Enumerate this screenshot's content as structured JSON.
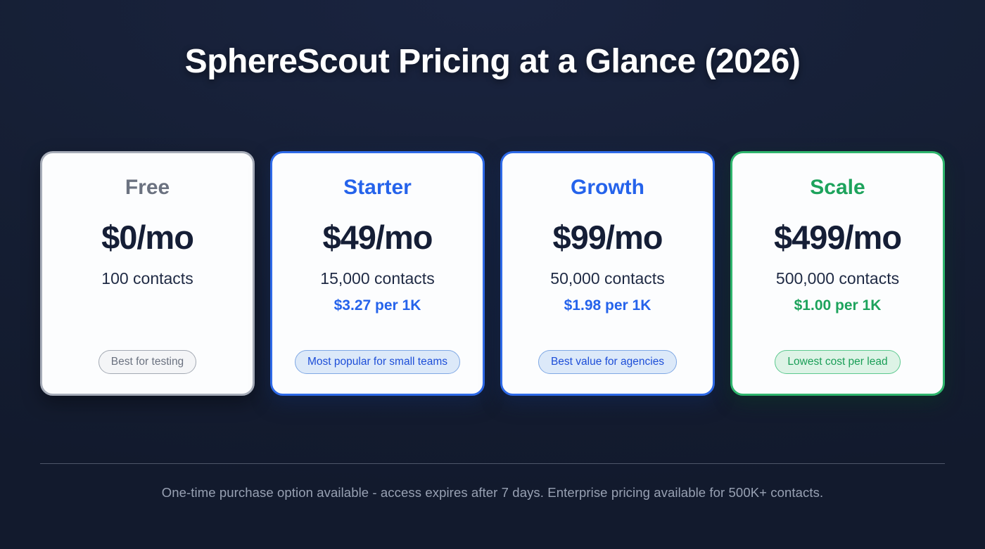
{
  "page": {
    "title": "SphereScout Pricing at a Glance (2026)",
    "footer_note": "One-time purchase option available - access expires after 7 days. Enterprise pricing available for 500K+ contacts."
  },
  "colors": {
    "background": "#151e33",
    "accent_blue": "#2563eb",
    "accent_green": "#1da35c",
    "accent_gray": "#6b7280",
    "card_background": "#fcfdfe",
    "price_text": "#151e36"
  },
  "plans": [
    {
      "name": "Free",
      "price": "$0/mo",
      "contacts": "100 contacts",
      "per_1k": "",
      "badge": "Best for testing",
      "theme": "gray"
    },
    {
      "name": "Starter",
      "price": "$49/mo",
      "contacts": "15,000 contacts",
      "per_1k": "$3.27 per 1K",
      "badge": "Most popular for small teams",
      "theme": "blue"
    },
    {
      "name": "Growth",
      "price": "$99/mo",
      "contacts": "50,000 contacts",
      "per_1k": "$1.98 per 1K",
      "badge": "Best value for agencies",
      "theme": "blue"
    },
    {
      "name": "Scale",
      "price": "$499/mo",
      "contacts": "500,000 contacts",
      "per_1k": "$1.00 per 1K",
      "badge": "Lowest cost per lead",
      "theme": "green"
    }
  ]
}
